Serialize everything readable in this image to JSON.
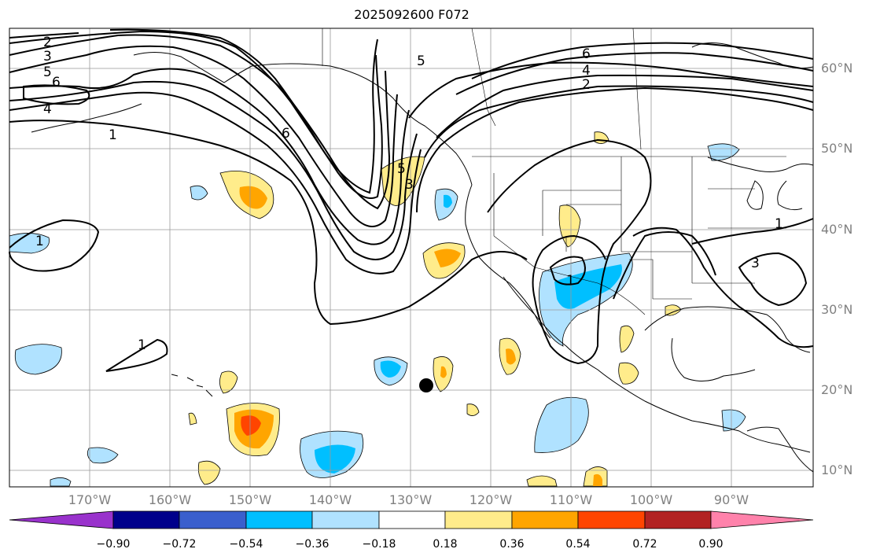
{
  "title": "2025092600 F072",
  "lat_labels": [
    "60°N",
    "50°N",
    "40°N",
    "30°N",
    "20°N",
    "10°N"
  ],
  "lon_labels": [
    "170°W",
    "160°W",
    "150°W",
    "140°W",
    "130°W",
    "120°W",
    "110°W",
    "100°W",
    "90°W"
  ],
  "contour_labels": [
    "2",
    "3",
    "5",
    "6",
    "4",
    "1",
    "6",
    "5",
    "3",
    "6",
    "4",
    "2",
    "5",
    "1",
    "1",
    "1",
    "1",
    "3"
  ],
  "colorbar": {
    "ticks": [
      "−0.90",
      "−0.72",
      "−0.54",
      "−0.36",
      "−0.18",
      "0.18",
      "0.36",
      "0.54",
      "0.72",
      "0.90"
    ],
    "colors": [
      "#9932cc",
      "#00008b",
      "#3a5fcd",
      "#00bfff",
      "#b0e2ff",
      "#ffffff",
      "#ffec8b",
      "#ffa500",
      "#ff4500",
      "#b22222",
      "#ff82ab"
    ]
  },
  "colors": {
    "neg_light": "#b0e2ff",
    "neg_mid": "#00bfff",
    "pos_light": "#ffec8b",
    "pos_mid": "#ffa500",
    "pos_strong": "#ff4500"
  },
  "marker": "black-dot"
}
